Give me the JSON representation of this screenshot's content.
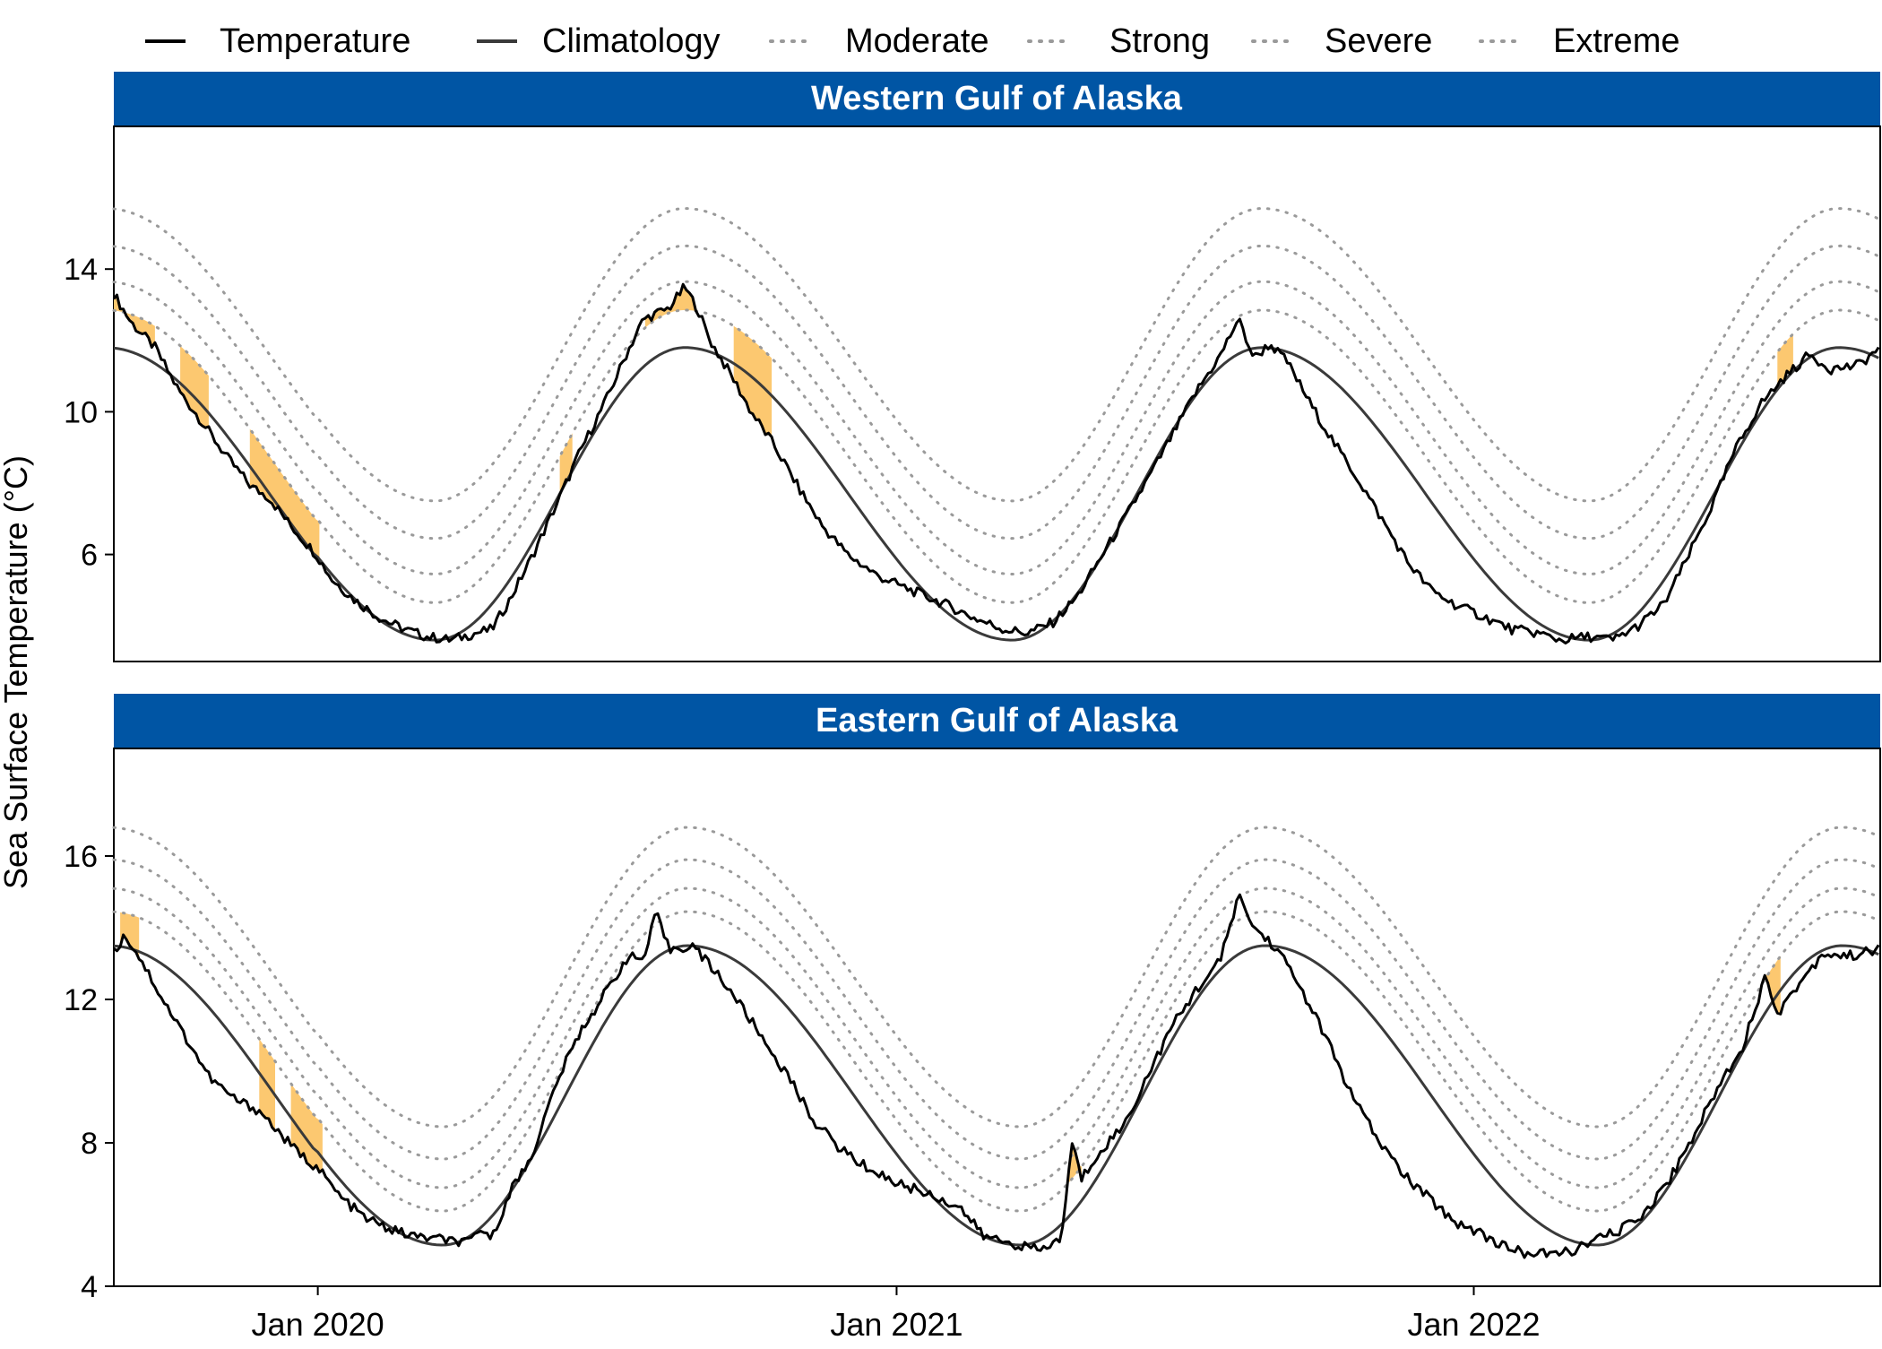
{
  "legend": {
    "items": [
      {
        "label": "Temperature",
        "style": "solid",
        "color": "#000000"
      },
      {
        "label": "Climatology",
        "style": "solid",
        "color": "#3a3a3a"
      },
      {
        "label": "Moderate",
        "style": "dotted",
        "color": "#9a9a9a"
      },
      {
        "label": "Strong",
        "style": "dotted",
        "color": "#9a9a9a"
      },
      {
        "label": "Severe",
        "style": "dotted",
        "color": "#9a9a9a"
      },
      {
        "label": "Extreme",
        "style": "dotted",
        "color": "#9a9a9a"
      }
    ],
    "position": "top"
  },
  "y_axis_label": "Sea Surface Temperature (°C)",
  "colors": {
    "strip": "#0055a4",
    "strip_text": "#ffffff",
    "heatwave_fill": "#fcc870",
    "temperature": "#000000",
    "climatology": "#3a3a3a",
    "threshold": "#9a9a9a"
  },
  "chart_data": [
    {
      "type": "line",
      "title": "Western Gulf of Alaska",
      "x_range": [
        "2019-08-25",
        "2022-09-15"
      ],
      "x_ticks": [
        "Jan 2020",
        "Jan 2021",
        "Jan 2022"
      ],
      "y_ticks": [
        6,
        10,
        14
      ],
      "ylim": [
        3,
        18
      ],
      "climatology": {
        "min": 3.6,
        "max": 11.8,
        "min_date": "03-15",
        "max_date": "08-20"
      },
      "threshold_offsets": {
        "Moderate": 1.05,
        "Strong": 1.85,
        "Severe": 2.85,
        "Extreme": 3.9
      },
      "series": [
        {
          "name": "Temperature",
          "points": [
            [
              "2019-08-25",
              13.3
            ],
            [
              "2019-09-05",
              12.5
            ],
            [
              "2019-09-20",
              11.8
            ],
            [
              "2019-10-05",
              10.6
            ],
            [
              "2019-10-20",
              9.7
            ],
            [
              "2019-11-05",
              8.7
            ],
            [
              "2019-11-20",
              7.9
            ],
            [
              "2019-12-01",
              7.6
            ],
            [
              "2019-12-15",
              6.8
            ],
            [
              "2019-12-31",
              6.0
            ],
            [
              "2020-01-10",
              5.3
            ],
            [
              "2020-01-25",
              4.7
            ],
            [
              "2020-02-10",
              4.2
            ],
            [
              "2020-02-25",
              3.9
            ],
            [
              "2020-03-10",
              3.7
            ],
            [
              "2020-03-25",
              3.6
            ],
            [
              "2020-04-10",
              3.8
            ],
            [
              "2020-04-20",
              3.9
            ],
            [
              "2020-05-01",
              4.7
            ],
            [
              "2020-05-15",
              5.9
            ],
            [
              "2020-06-01",
              7.5
            ],
            [
              "2020-06-15",
              8.9
            ],
            [
              "2020-07-01",
              10.3
            ],
            [
              "2020-07-15",
              11.7
            ],
            [
              "2020-07-25",
              12.6
            ],
            [
              "2020-08-10",
              12.9
            ],
            [
              "2020-08-20",
              13.5
            ],
            [
              "2020-08-28",
              12.9
            ],
            [
              "2020-09-05",
              12.0
            ],
            [
              "2020-09-20",
              10.9
            ],
            [
              "2020-10-01",
              10.0
            ],
            [
              "2020-10-15",
              9.1
            ],
            [
              "2020-11-01",
              7.8
            ],
            [
              "2020-11-15",
              6.8
            ],
            [
              "2020-12-01",
              6.0
            ],
            [
              "2020-12-20",
              5.4
            ],
            [
              "2021-01-10",
              5.0
            ],
            [
              "2021-02-01",
              4.6
            ],
            [
              "2021-02-20",
              4.2
            ],
            [
              "2021-03-10",
              3.9
            ],
            [
              "2021-03-25",
              3.8
            ],
            [
              "2021-04-10",
              4.1
            ],
            [
              "2021-04-25",
              4.8
            ],
            [
              "2021-05-10",
              5.9
            ],
            [
              "2021-05-25",
              7.0
            ],
            [
              "2021-06-10",
              8.2
            ],
            [
              "2021-06-25",
              9.4
            ],
            [
              "2021-07-10",
              10.6
            ],
            [
              "2021-07-25",
              11.6
            ],
            [
              "2021-08-05",
              12.6
            ],
            [
              "2021-08-15",
              11.5
            ],
            [
              "2021-08-25",
              11.9
            ],
            [
              "2021-09-05",
              11.4
            ],
            [
              "2021-09-20",
              10.2
            ],
            [
              "2021-10-05",
              9.1
            ],
            [
              "2021-10-20",
              8.1
            ],
            [
              "2021-11-05",
              6.9
            ],
            [
              "2021-11-20",
              5.8
            ],
            [
              "2021-12-05",
              5.0
            ],
            [
              "2021-12-20",
              4.6
            ],
            [
              "2022-01-10",
              4.2
            ],
            [
              "2022-01-25",
              3.9
            ],
            [
              "2022-02-10",
              3.8
            ],
            [
              "2022-02-25",
              3.6
            ],
            [
              "2022-03-15",
              3.7
            ],
            [
              "2022-03-30",
              3.6
            ],
            [
              "2022-04-15",
              4.0
            ],
            [
              "2022-05-01",
              4.6
            ],
            [
              "2022-05-15",
              5.8
            ],
            [
              "2022-06-01",
              7.4
            ],
            [
              "2022-06-15",
              8.9
            ],
            [
              "2022-07-01",
              10.2
            ],
            [
              "2022-07-15",
              10.9
            ],
            [
              "2022-08-01",
              11.6
            ],
            [
              "2022-08-15",
              11.2
            ],
            [
              "2022-09-01",
              11.3
            ],
            [
              "2022-09-15",
              11.8
            ]
          ]
        }
      ],
      "heatwave_periods": [
        [
          "2019-08-25",
          "2019-09-20"
        ],
        [
          "2019-10-05",
          "2019-10-25"
        ],
        [
          "2019-11-18",
          "2020-01-02"
        ],
        [
          "2020-06-01",
          "2020-06-10"
        ],
        [
          "2020-07-25",
          "2020-08-28"
        ],
        [
          "2020-09-20",
          "2020-10-15"
        ],
        [
          "2022-07-12",
          "2022-07-22"
        ]
      ]
    },
    {
      "type": "line",
      "title": "Eastern Gulf of Alaska",
      "x_range": [
        "2019-08-25",
        "2022-09-15"
      ],
      "x_ticks": [
        "Jan 2020",
        "Jan 2021",
        "Jan 2022"
      ],
      "y_ticks": [
        4,
        8,
        12,
        16
      ],
      "ylim": [
        4,
        19
      ],
      "climatology": {
        "min": 5.15,
        "max": 13.5,
        "min_date": "03-20",
        "max_date": "08-22"
      },
      "threshold_offsets": {
        "Moderate": 0.95,
        "Strong": 1.6,
        "Severe": 2.4,
        "Extreme": 3.3
      },
      "series": [
        {
          "name": "Temperature",
          "points": [
            [
              "2019-08-25",
              13.3
            ],
            [
              "2019-09-01",
              13.8
            ],
            [
              "2019-09-10",
              13.2
            ],
            [
              "2019-09-25",
              12.0
            ],
            [
              "2019-10-10",
              10.9
            ],
            [
              "2019-10-25",
              9.8
            ],
            [
              "2019-11-10",
              9.2
            ],
            [
              "2019-11-25",
              8.9
            ],
            [
              "2019-12-05",
              8.4
            ],
            [
              "2019-12-20",
              7.7
            ],
            [
              "2020-01-01",
              7.3
            ],
            [
              "2020-01-15",
              6.5
            ],
            [
              "2020-01-31",
              5.9
            ],
            [
              "2020-02-15",
              5.6
            ],
            [
              "2020-03-01",
              5.4
            ],
            [
              "2020-03-20",
              5.3
            ],
            [
              "2020-04-05",
              5.2
            ],
            [
              "2020-04-15",
              5.6
            ],
            [
              "2020-04-20",
              5.3
            ],
            [
              "2020-05-01",
              6.6
            ],
            [
              "2020-05-15",
              7.6
            ],
            [
              "2020-06-01",
              9.8
            ],
            [
              "2020-06-15",
              11.1
            ],
            [
              "2020-07-01",
              12.2
            ],
            [
              "2020-07-15",
              13.2
            ],
            [
              "2020-07-25",
              13.1
            ],
            [
              "2020-08-02",
              14.4
            ],
            [
              "2020-08-10",
              13.4
            ],
            [
              "2020-08-25",
              13.5
            ],
            [
              "2020-09-10",
              12.7
            ],
            [
              "2020-09-25",
              11.8
            ],
            [
              "2020-10-10",
              10.8
            ],
            [
              "2020-10-25",
              9.8
            ],
            [
              "2020-11-10",
              8.6
            ],
            [
              "2020-11-25",
              7.9
            ],
            [
              "2020-12-10",
              7.4
            ],
            [
              "2020-12-31",
              6.9
            ],
            [
              "2021-01-20",
              6.6
            ],
            [
              "2021-02-10",
              6.2
            ],
            [
              "2021-02-25",
              5.4
            ],
            [
              "2021-03-15",
              5.2
            ],
            [
              "2021-04-01",
              5.0
            ],
            [
              "2021-04-15",
              5.3
            ],
            [
              "2021-04-22",
              8.0
            ],
            [
              "2021-04-28",
              7.0
            ],
            [
              "2021-05-10",
              7.8
            ],
            [
              "2021-05-25",
              8.5
            ],
            [
              "2021-06-10",
              10.0
            ],
            [
              "2021-06-25",
              11.3
            ],
            [
              "2021-07-10",
              12.3
            ],
            [
              "2021-07-25",
              13.1
            ],
            [
              "2021-08-05",
              14.9
            ],
            [
              "2021-08-15",
              14.0
            ],
            [
              "2021-08-30",
              13.4
            ],
            [
              "2021-09-15",
              12.2
            ],
            [
              "2021-10-01",
              10.8
            ],
            [
              "2021-10-15",
              9.4
            ],
            [
              "2021-11-01",
              8.1
            ],
            [
              "2021-11-20",
              7.0
            ],
            [
              "2021-12-05",
              6.4
            ],
            [
              "2021-12-20",
              5.8
            ],
            [
              "2022-01-05",
              5.5
            ],
            [
              "2022-01-20",
              5.1
            ],
            [
              "2022-02-05",
              4.9
            ],
            [
              "2022-02-20",
              4.9
            ],
            [
              "2022-03-05",
              5.0
            ],
            [
              "2022-03-20",
              5.3
            ],
            [
              "2022-04-05",
              5.6
            ],
            [
              "2022-04-20",
              6.1
            ],
            [
              "2022-05-05",
              7.0
            ],
            [
              "2022-05-20",
              8.2
            ],
            [
              "2022-06-05",
              9.6
            ],
            [
              "2022-06-20",
              10.7
            ],
            [
              "2022-07-05",
              12.7
            ],
            [
              "2022-07-12",
              11.6
            ],
            [
              "2022-07-25",
              12.4
            ],
            [
              "2022-08-10",
              13.3
            ],
            [
              "2022-08-25",
              13.2
            ],
            [
              "2022-09-15",
              13.4
            ]
          ]
        }
      ],
      "heatwave_periods": [
        [
          "2019-08-28",
          "2019-09-10"
        ],
        [
          "2019-11-25",
          "2019-12-05"
        ],
        [
          "2019-12-15",
          "2020-01-05"
        ],
        [
          "2021-04-20",
          "2021-04-28"
        ],
        [
          "2022-07-03",
          "2022-07-14"
        ]
      ]
    }
  ]
}
